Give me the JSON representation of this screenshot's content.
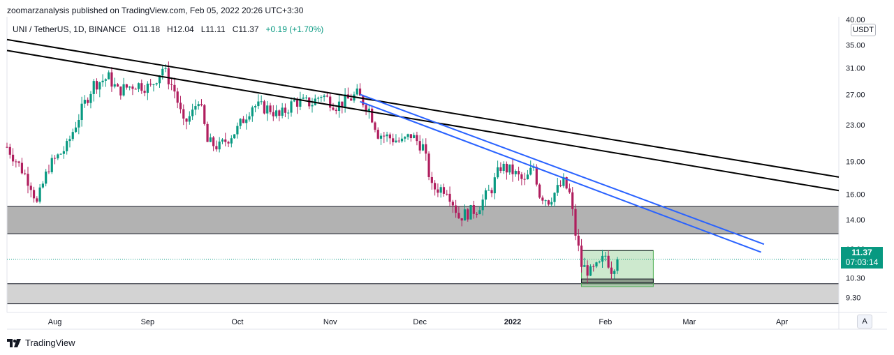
{
  "header": {
    "published_by": "zoomarzanalysis published on TradingView.com, Feb 05, 2022 20:26 UTC+3:30"
  },
  "symbol_bar": {
    "symbol": "UNI / TetherUS, 1D, BINANCE",
    "open_label": "O",
    "open": "11.18",
    "high_label": "H",
    "high": "12.04",
    "low_label": "L",
    "low": "11.11",
    "close_label": "C",
    "close": "11.37",
    "change": "+0.19 (+1.70%)"
  },
  "price_axis": {
    "currency": "USDT",
    "last_price": "11.37",
    "countdown": "07:03:14",
    "auto_label": "A"
  },
  "footer": {
    "brand": "TradingView"
  },
  "colors": {
    "up": "#089981",
    "down": "#b01e5e",
    "blue_line": "#2962ff",
    "black_line": "#000000",
    "zone": "#b2b2b2",
    "green_box": "#4caf50"
  },
  "chart_data": {
    "type": "candlestick",
    "y_scale": "log",
    "ylim": [
      8.6,
      40.0
    ],
    "x_range": [
      "2021-07-16",
      "2022-04-20"
    ],
    "y_ticks": [
      40.0,
      35.0,
      31.0,
      27.0,
      23.0,
      19.0,
      16.0,
      14.0,
      12.0,
      10.3,
      9.3
    ],
    "y_tick_labels": [
      "40.00",
      "35.00",
      "31.00",
      "27.00",
      "23.00",
      "19.00",
      "16.00",
      "14.00",
      "12.00",
      "10.30",
      "9.30"
    ],
    "x_ticks": [
      {
        "date": "2021-08-01",
        "label": "Aug"
      },
      {
        "date": "2021-09-01",
        "label": "Sep"
      },
      {
        "date": "2021-10-01",
        "label": "Oct"
      },
      {
        "date": "2021-11-01",
        "label": "Nov"
      },
      {
        "date": "2021-12-01",
        "label": "Dec"
      },
      {
        "date": "2022-01-01",
        "label": "2022"
      },
      {
        "date": "2022-02-01",
        "label": "Feb"
      },
      {
        "date": "2022-03-01",
        "label": "Mar"
      },
      {
        "date": "2022-04-01",
        "label": "Apr"
      }
    ],
    "anchors": [
      [
        "2021-07-16",
        20.5
      ],
      [
        "2021-07-24",
        16.8
      ],
      [
        "2021-07-26",
        15.2
      ],
      [
        "2021-07-30",
        18.5
      ],
      [
        "2021-08-05",
        20.5
      ],
      [
        "2021-08-09",
        24.0
      ],
      [
        "2021-08-14",
        28.5
      ],
      [
        "2021-08-19",
        29.5
      ],
      [
        "2021-08-22",
        27.5
      ],
      [
        "2021-08-28",
        28.5
      ],
      [
        "2021-09-02",
        28.0
      ],
      [
        "2021-09-06",
        31.0
      ],
      [
        "2021-09-10",
        27.5
      ],
      [
        "2021-09-13",
        23.0
      ],
      [
        "2021-09-16",
        24.5
      ],
      [
        "2021-09-18",
        26.5
      ],
      [
        "2021-09-21",
        21.0
      ],
      [
        "2021-09-25",
        20.5
      ],
      [
        "2021-09-28",
        21.5
      ],
      [
        "2021-10-01",
        22.5
      ],
      [
        "2021-10-06",
        25.5
      ],
      [
        "2021-10-12",
        25.0
      ],
      [
        "2021-10-15",
        24.0
      ],
      [
        "2021-10-20",
        26.0
      ],
      [
        "2021-10-26",
        25.8
      ],
      [
        "2021-10-29",
        27.0
      ],
      [
        "2021-11-03",
        25.5
      ],
      [
        "2021-11-08",
        26.5
      ],
      [
        "2021-11-10",
        27.0
      ],
      [
        "2021-11-14",
        25.0
      ],
      [
        "2021-11-17",
        22.0
      ],
      [
        "2021-11-21",
        21.5
      ],
      [
        "2021-11-25",
        21.0
      ],
      [
        "2021-11-28",
        21.8
      ],
      [
        "2021-12-02",
        20.5
      ],
      [
        "2021-12-05",
        16.5
      ],
      [
        "2021-12-10",
        16.5
      ],
      [
        "2021-12-14",
        14.2
      ],
      [
        "2021-12-20",
        14.8
      ],
      [
        "2021-12-25",
        16.5
      ],
      [
        "2021-12-28",
        18.5
      ],
      [
        "2022-01-01",
        18.0
      ],
      [
        "2022-01-05",
        17.0
      ],
      [
        "2022-01-08",
        18.5
      ],
      [
        "2022-01-10",
        16.0
      ],
      [
        "2022-01-13",
        15.5
      ],
      [
        "2022-01-18",
        17.0
      ],
      [
        "2022-01-20",
        16.0
      ],
      [
        "2022-01-22",
        13.0
      ],
      [
        "2022-01-24",
        11.0
      ],
      [
        "2022-01-27",
        10.6
      ],
      [
        "2022-01-30",
        11.0
      ],
      [
        "2022-02-01",
        11.6
      ],
      [
        "2022-02-03",
        10.8
      ],
      [
        "2022-02-05",
        11.37
      ]
    ],
    "trendlines": [
      {
        "name": "black-upper",
        "color": "black",
        "from": [
          "2021-07-16",
          36.0
        ],
        "to": [
          "2022-04-20",
          17.5
        ]
      },
      {
        "name": "black-lower",
        "color": "black",
        "from": [
          "2021-07-16",
          34.0
        ],
        "to": [
          "2022-04-20",
          16.3
        ]
      },
      {
        "name": "blue-upper",
        "color": "blue",
        "from": [
          "2021-11-11",
          27.0
        ],
        "to": [
          "2022-03-26",
          12.3
        ]
      },
      {
        "name": "blue-lower",
        "color": "blue",
        "from": [
          "2021-11-11",
          26.0
        ],
        "to": [
          "2022-03-25",
          11.8
        ]
      }
    ],
    "zones": [
      {
        "name": "resistance-zone",
        "from": "2021-07-16",
        "to": "2022-04-20",
        "y1": 13.0,
        "y2": 15.0,
        "color": "gray"
      },
      {
        "name": "support-zone",
        "from": "2021-07-16",
        "to": "2022-04-20",
        "y1": 9.0,
        "y2": 10.0,
        "color": "lightgray"
      }
    ],
    "range_box": {
      "from": "2022-01-24",
      "to": "2022-02-17",
      "top": 11.9,
      "bottom": 9.85,
      "inner_top": 10.25,
      "inner_bottom": 10.05
    },
    "last_price": 11.37
  }
}
